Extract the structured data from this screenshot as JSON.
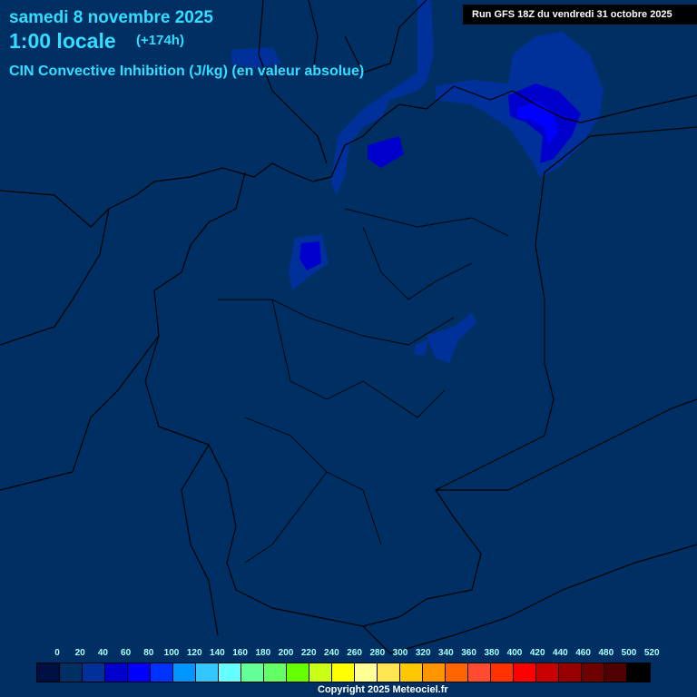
{
  "header": {
    "date": "samedi 8 novembre 2025",
    "time": "1:00 locale",
    "lead": "(+174h)",
    "parameter": "CIN Convective Inhibition (J/kg) (en valeur absolue)",
    "run": "Run GFS 18Z du vendredi 31 octobre 2025"
  },
  "legend": {
    "labels": [
      "0",
      "20",
      "40",
      "60",
      "80",
      "100",
      "120",
      "140",
      "160",
      "180",
      "200",
      "220",
      "240",
      "260",
      "280",
      "300",
      "320",
      "340",
      "360",
      "380",
      "400",
      "420",
      "440",
      "460",
      "480",
      "500",
      "520"
    ],
    "colors": [
      "#001044",
      "#003063",
      "#00309a",
      "#0000cc",
      "#0000ff",
      "#0032ff",
      "#0096ff",
      "#32c8ff",
      "#64ffff",
      "#64ff96",
      "#64ff64",
      "#64ff00",
      "#c8ff14",
      "#ffff00",
      "#ffff96",
      "#ffe650",
      "#ffc800",
      "#ff9600",
      "#ff6400",
      "#ff4b32",
      "#ff3200",
      "#ff0000",
      "#c80000",
      "#960000",
      "#6e0000",
      "#500000",
      "#000000"
    ]
  },
  "copyright": "Copyright 2025 Meteociel.fr",
  "colors": {
    "background": "#003063",
    "title": "#33ddff"
  }
}
